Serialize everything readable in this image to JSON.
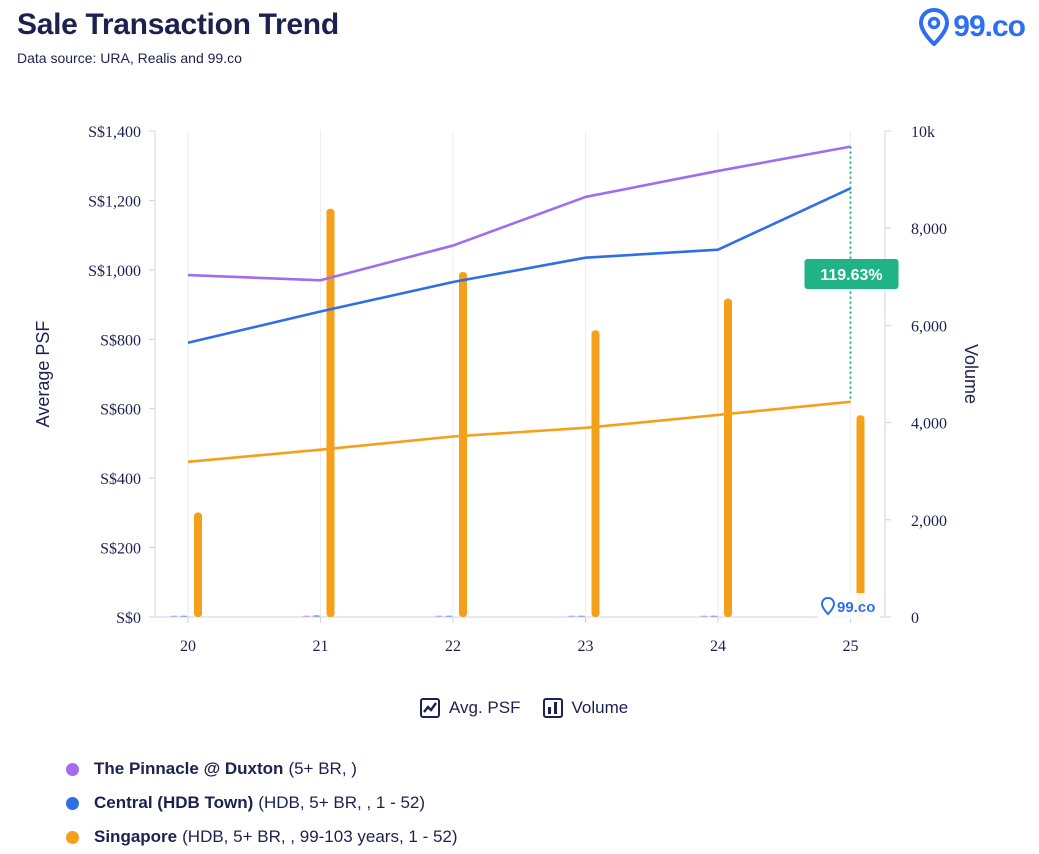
{
  "header": {
    "title": "Sale Transaction Trend",
    "subtitle": "Data source: URA, Realis and 99.co",
    "brand": "99.co"
  },
  "chart_data": {
    "type": "line+bar",
    "categories": [
      "20",
      "21",
      "22",
      "23",
      "24",
      "25"
    ],
    "y_left": {
      "label": "Average PSF",
      "range": [
        0,
        1400
      ],
      "ticks": [
        "S$0",
        "S$200",
        "S$400",
        "S$600",
        "S$800",
        "S$1,000",
        "S$1,200",
        "S$1,400"
      ]
    },
    "y_right": {
      "label": "Volume",
      "range": [
        0,
        10000
      ],
      "ticks": [
        "0",
        "2,000",
        "4,000",
        "6,000",
        "8,000",
        "10k"
      ]
    },
    "line_series": [
      {
        "name": "The Pinnacle @ Duxton",
        "color": "#a06cf0",
        "values": [
          985,
          970,
          1070,
          1210,
          1285,
          1355
        ]
      },
      {
        "name": "Central (HDB Town)",
        "color": "#2f6fe6",
        "values": [
          790,
          880,
          965,
          1035,
          1058,
          1235
        ]
      },
      {
        "name": "Singapore",
        "color": "#f5a01a",
        "values": [
          447,
          482,
          520,
          545,
          582,
          620
        ]
      }
    ],
    "volume_series": [
      {
        "name": "The Pinnacle @ Duxton",
        "color": "#a06cf0",
        "values": [
          2,
          3,
          2,
          1,
          1,
          0
        ]
      },
      {
        "name": "Central (HDB Town)",
        "color": "#2f6fe6",
        "values": [
          20,
          40,
          25,
          15,
          20,
          0
        ]
      },
      {
        "name": "Singapore",
        "color": "#f5a01a",
        "values": [
          2150,
          8400,
          7100,
          5900,
          6550,
          4150
        ]
      }
    ],
    "annotation": {
      "text": "119.63%",
      "color": "#1fb386",
      "category": "25"
    },
    "grid": "vertical",
    "watermark": "99.co"
  },
  "toggles": {
    "avg_psf": "Avg. PSF",
    "volume": "Volume"
  },
  "legend": [
    {
      "name": "The Pinnacle @ Duxton",
      "detail": "(5+ BR, )",
      "color": "#a06cf0"
    },
    {
      "name": "Central (HDB Town)",
      "detail": "(HDB, 5+ BR, , 1 - 52)",
      "color": "#2f6fe6"
    },
    {
      "name": "Singapore",
      "detail": "(HDB, 5+ BR, , 99-103 years, 1 - 52)",
      "color": "#f5a01a"
    }
  ]
}
